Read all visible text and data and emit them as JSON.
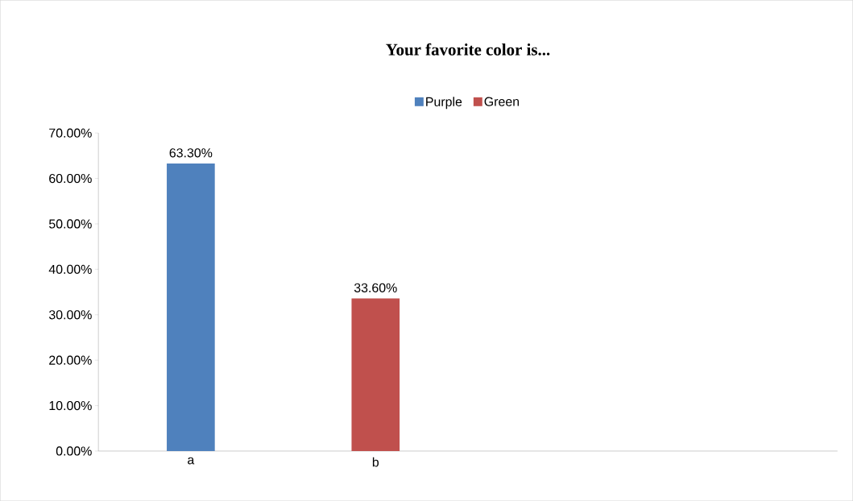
{
  "chart_data": {
    "type": "bar",
    "title": "Your favorite color is...",
    "categories": [
      "a",
      "b",
      null,
      null
    ],
    "series": [
      {
        "name": "Purple",
        "color": "#4f81bd",
        "values": [
          63.3,
          null,
          null,
          null
        ],
        "value_labels": [
          "63.30%",
          null,
          null,
          null
        ]
      },
      {
        "name": "Green",
        "color": "#c0504d",
        "values": [
          null,
          33.6,
          null,
          null
        ],
        "value_labels": [
          null,
          "33.60%",
          null,
          null
        ]
      }
    ],
    "ylim": [
      0,
      70
    ],
    "yticks": [
      {
        "value": 0,
        "label": "0.00%"
      },
      {
        "value": 10,
        "label": "10.00%"
      },
      {
        "value": 20,
        "label": "20.00%"
      },
      {
        "value": 30,
        "label": "30.00%"
      },
      {
        "value": 40,
        "label": "40.00%"
      },
      {
        "value": 50,
        "label": "50.00%"
      },
      {
        "value": 60,
        "label": "60.00%"
      },
      {
        "value": 70,
        "label": "70.00%"
      }
    ],
    "grid": false,
    "legend": "top"
  }
}
